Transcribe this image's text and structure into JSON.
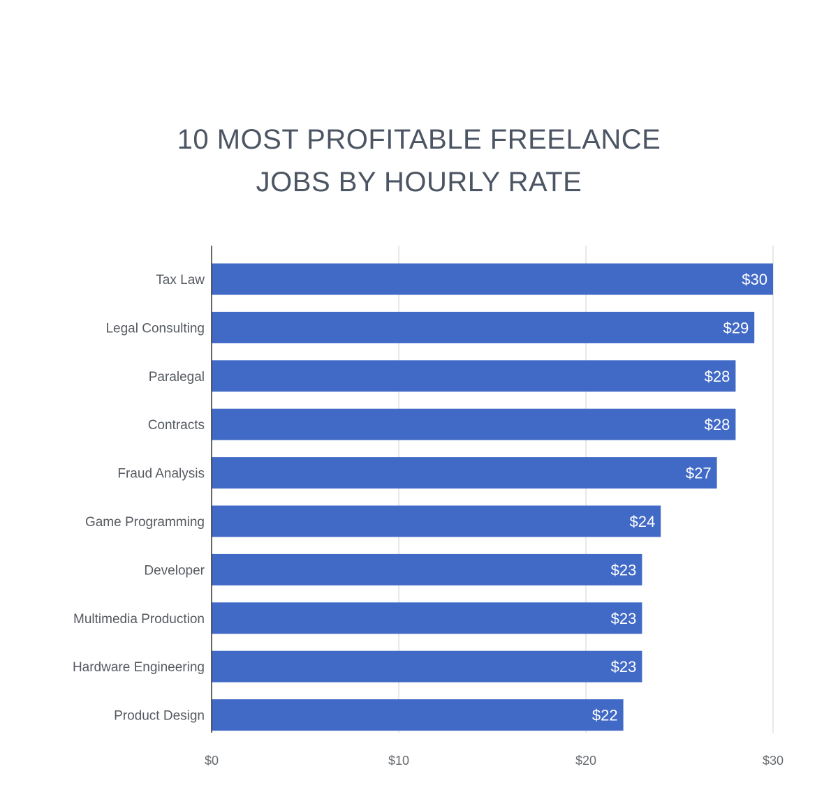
{
  "chart_data": {
    "type": "bar",
    "orientation": "horizontal",
    "title_lines": [
      "10 MOST PROFITABLE FREELANCE",
      "JOBS BY HOURLY RATE"
    ],
    "categories": [
      "Tax Law",
      "Legal Consulting",
      "Paralegal",
      "Contracts",
      "Fraud Analysis",
      "Game Programming",
      "Developer",
      "Multimedia Production",
      "Hardware Engineering",
      "Product Design"
    ],
    "values": [
      30,
      29,
      28,
      28,
      27,
      24,
      23,
      23,
      23,
      22
    ],
    "data_labels": [
      "$30",
      "$29",
      "$28",
      "$28",
      "$27",
      "$24",
      "$23",
      "$23",
      "$23",
      "$22"
    ],
    "x_ticks": [
      0,
      10,
      20,
      30
    ],
    "x_tick_labels": [
      "$0",
      "$10",
      "$20",
      "$30"
    ],
    "xlim": [
      0,
      30
    ],
    "xlabel": "",
    "ylabel": "",
    "grid": true,
    "legend": "none",
    "colors": {
      "bar": "#4169c6",
      "title": "#4b5563",
      "gridline": "#d9d9d9",
      "axis": "#333333"
    }
  }
}
